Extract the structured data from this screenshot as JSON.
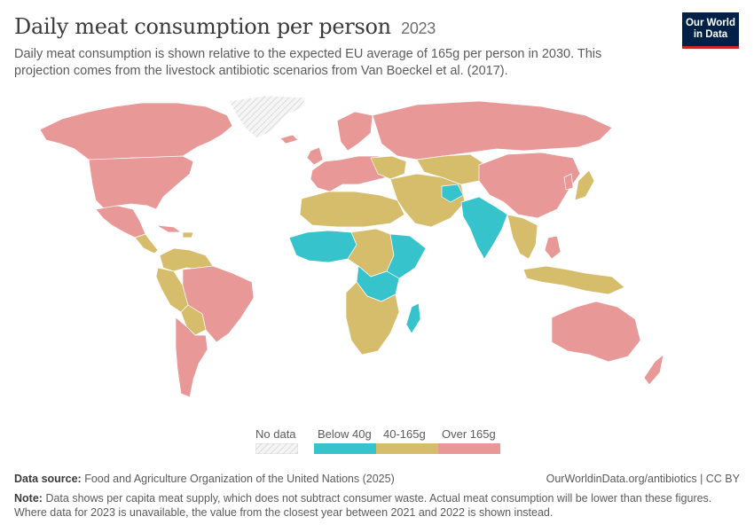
{
  "header": {
    "title": "Daily meat consumption per person",
    "year": "2023",
    "subtitle": "Daily meat consumption is shown relative to the expected EU average of 165g per person in 2030. This projection comes from the livestock antibiotic scenarios from Van Boeckel et al. (2017)."
  },
  "logo": {
    "line1": "Our World",
    "line2": "in Data",
    "bg": "#002147",
    "accent": "#ce261e"
  },
  "legend": {
    "items": [
      {
        "label": "No data",
        "color": "hatched"
      },
      {
        "label": "Below 40g",
        "color": "#36c3cc"
      },
      {
        "label": "40-165g",
        "color": "#d6bd6c"
      },
      {
        "label": "Over 165g",
        "color": "#e89896"
      }
    ]
  },
  "colors": {
    "low": "#36c3cc",
    "mid": "#d6bd6c",
    "high": "#e89896",
    "no_data": "#e6e6e6",
    "border": "#ffffff"
  },
  "footer": {
    "source_label": "Data source:",
    "source_text": "Food and Agriculture Organization of the United Nations (2025)",
    "url": "OurWorldinData.org/antibiotics | CC BY",
    "note_label": "Note:",
    "note_text": "Data shows per capita meat supply, which does not subtract consumer waste. Actual meat consumption will be lower than these figures. Where data for 2023 is unavailable, the value from the closest year between 2021 and 2022 is shown instead."
  }
}
